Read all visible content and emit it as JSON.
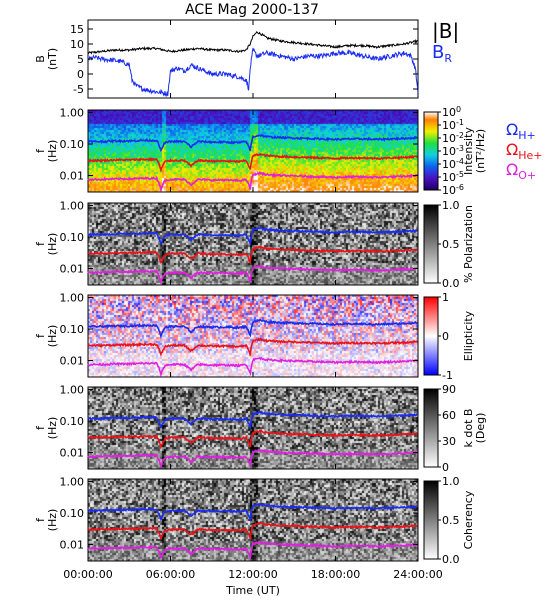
{
  "chart_data": [
    {
      "type": "line",
      "title": "ACE Mag 2000-137",
      "ylabel": [
        "B",
        "(nT)"
      ],
      "ylim": [
        -8,
        18
      ],
      "yticks": [
        "15",
        "10",
        "5",
        "0",
        "-5"
      ],
      "ytick_values": [
        15,
        10,
        5,
        0,
        -5
      ],
      "xlim": [
        0,
        24
      ],
      "legend": [
        {
          "text": "|B|",
          "color": "#000000"
        },
        {
          "text": "B",
          "sub": "R",
          "color": "#1a2cf0"
        }
      ],
      "series": [
        {
          "name": "|B|",
          "color": "#000000",
          "x": [
            0,
            1,
            2,
            3,
            4,
            5,
            5.5,
            6,
            7,
            8,
            9,
            10,
            11,
            11.5,
            11.8,
            12,
            12.3,
            12.7,
            13,
            14,
            15,
            16,
            17,
            18,
            19,
            20,
            21,
            22,
            23,
            23.5,
            24
          ],
          "y": [
            7,
            7.5,
            8,
            8,
            8.5,
            8.5,
            8,
            7.5,
            8,
            8.5,
            8,
            8,
            7.5,
            8,
            10,
            12.5,
            14,
            13,
            12,
            11,
            10.5,
            10,
            9.5,
            9,
            9.5,
            9.5,
            9,
            9.5,
            10,
            10.5,
            11
          ]
        },
        {
          "name": "B",
          "sub": "R",
          "color": "#1a2cf0",
          "x": [
            0,
            0.5,
            1,
            2,
            2.5,
            3,
            3.2,
            3.5,
            4,
            5,
            5.8,
            6,
            6.5,
            7,
            7.5,
            8,
            9,
            10,
            11,
            11.5,
            11.7,
            11.8,
            12,
            12.3,
            13,
            14,
            15,
            16,
            17,
            18,
            19,
            20,
            21,
            22,
            23,
            23.5,
            23.8,
            24
          ],
          "y": [
            5,
            5.5,
            5,
            4.5,
            4,
            3,
            -2,
            -4,
            -5,
            -6,
            -6.5,
            1,
            2,
            1,
            3,
            2,
            0,
            0,
            -1,
            -2,
            -5,
            2,
            8,
            6,
            7,
            6,
            5,
            6,
            6,
            7,
            7,
            6,
            5,
            6,
            7,
            6,
            2,
            -6
          ]
        }
      ]
    },
    {
      "type": "heatmap",
      "ylabel": [
        "f",
        "(Hz)"
      ],
      "yscale": "log",
      "ylim": [
        0.003,
        1.2
      ],
      "yticks": [
        "1.00",
        "0.10",
        "0.01"
      ],
      "ytick_values": [
        1,
        0.1,
        0.01
      ],
      "xlim": [
        0,
        24
      ],
      "colorbar": {
        "label": [
          "Intensity",
          "(nT²/Hz)"
        ],
        "ticks": [
          {
            "base": "10",
            "exp": "0"
          },
          {
            "base": "10",
            "exp": "-1"
          },
          {
            "base": "10",
            "exp": "-2"
          },
          {
            "base": "10",
            "exp": "-3"
          },
          {
            "base": "10",
            "exp": "-4"
          },
          {
            "base": "10",
            "exp": "-5"
          },
          {
            "base": "10",
            "exp": "-6"
          }
        ],
        "colormap": "rainbow"
      },
      "legend": [
        {
          "text": "Ω",
          "sub": "H+",
          "color": "#1a2cf0"
        },
        {
          "text": "Ω",
          "sub": "He+",
          "color": "#e8141a"
        },
        {
          "text": "Ω",
          "sub": "O+",
          "color": "#e020e0"
        }
      ]
    },
    {
      "type": "heatmap",
      "ylabel": [
        "f",
        "(Hz)"
      ],
      "yscale": "log",
      "ylim": [
        0.003,
        1.2
      ],
      "yticks": [
        "1.00",
        "0.10",
        "0.01"
      ],
      "ytick_values": [
        1,
        0.1,
        0.01
      ],
      "xlim": [
        0,
        24
      ],
      "colorbar": {
        "label": [
          "% Polarization"
        ],
        "ticks": [
          "1.0",
          "0.5",
          "0.0"
        ],
        "colormap": "gray"
      }
    },
    {
      "type": "heatmap",
      "ylabel": [
        "f",
        "(Hz)"
      ],
      "yscale": "log",
      "ylim": [
        0.003,
        1.2
      ],
      "yticks": [
        "1.00",
        "0.10",
        "0.01"
      ],
      "ytick_values": [
        1,
        0.1,
        0.01
      ],
      "xlim": [
        0,
        24
      ],
      "colorbar": {
        "label": [
          "Ellipticity"
        ],
        "ticks": [
          "1",
          "0",
          "-1"
        ],
        "colormap": "bwr"
      }
    },
    {
      "type": "heatmap",
      "ylabel": [
        "f",
        "(Hz)"
      ],
      "yscale": "log",
      "ylim": [
        0.003,
        1.2
      ],
      "yticks": [
        "1.00",
        "0.10",
        "0.01"
      ],
      "ytick_values": [
        1,
        0.1,
        0.01
      ],
      "xlim": [
        0,
        24
      ],
      "colorbar": {
        "label": [
          "k dot B",
          "(Deg)"
        ],
        "ticks": [
          "90",
          "60",
          "30",
          "0"
        ],
        "colormap": "gray"
      }
    },
    {
      "type": "heatmap",
      "ylabel": [
        "f",
        "(Hz)"
      ],
      "yscale": "log",
      "ylim": [
        0.003,
        1.2
      ],
      "yticks": [
        "1.00",
        "0.10",
        "0.01"
      ],
      "ytick_values": [
        1,
        0.1,
        0.01
      ],
      "xlim": [
        0,
        24
      ],
      "xticks": [
        "00:00:00",
        "06:00:00",
        "12:00:00",
        "18:00:00",
        "24:00:00"
      ],
      "xtick_values": [
        0,
        6,
        12,
        18,
        24
      ],
      "xlabel": "Time (UT)",
      "colorbar": {
        "label": [
          "Coherency"
        ],
        "ticks": [
          "1.0",
          "0.5",
          "0.0"
        ],
        "colormap": "gray"
      }
    }
  ],
  "gyro_lines": {
    "hplus_color": "#1a2cf0",
    "heplus_color": "#e8141a",
    "oplus_color": "#e020e0",
    "hplus_freq_x": [
      0,
      1,
      2,
      3,
      4,
      5,
      5.3,
      5.6,
      6,
      7,
      7.5,
      8,
      9,
      10,
      11,
      11.5,
      11.8,
      12,
      12.5,
      13,
      14,
      15,
      16,
      17,
      18,
      19,
      20,
      21,
      22,
      23,
      24
    ],
    "hplus_freq_y": [
      0.12,
      0.12,
      0.125,
      0.125,
      0.13,
      0.13,
      0.06,
      0.11,
      0.12,
      0.12,
      0.08,
      0.12,
      0.115,
      0.115,
      0.11,
      0.12,
      0.06,
      0.17,
      0.19,
      0.17,
      0.16,
      0.155,
      0.15,
      0.145,
      0.14,
      0.145,
      0.145,
      0.14,
      0.145,
      0.15,
      0.16
    ],
    "heplus_ratio": 0.25,
    "oplus_ratio": 0.0625
  }
}
